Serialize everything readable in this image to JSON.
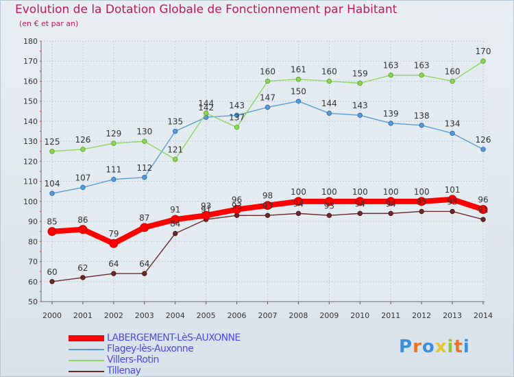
{
  "title": "Evolution de la Dotation Globale de Fonctionnement par Habitant",
  "subtitle": "(en € et par an)",
  "logo": "Proxiti",
  "chart_data": {
    "type": "line",
    "x": [
      "2000",
      "2001",
      "2002",
      "2003",
      "2004",
      "2005",
      "2006",
      "2007",
      "2008",
      "2009",
      "2010",
      "2011",
      "2012",
      "2013",
      "2014"
    ],
    "yticks": [
      50,
      60,
      70,
      80,
      90,
      100,
      110,
      120,
      130,
      140,
      150,
      160,
      170,
      180
    ],
    "ylim": [
      50,
      180
    ],
    "grid": true,
    "legend_position": "bottom-left",
    "series": [
      {
        "name": "LABERGEMENT-LèS-AUXONNE",
        "color": "#ff0000",
        "values": [
          85,
          86,
          79,
          87,
          91,
          93,
          96,
          98,
          100,
          100,
          100,
          100,
          100,
          101,
          96
        ]
      },
      {
        "name": "Flagey-lès-Auxonne",
        "color": "#5b9bd5",
        "values": [
          104,
          107,
          111,
          112,
          135,
          142,
          143,
          147,
          150,
          144,
          143,
          139,
          138,
          134,
          126
        ]
      },
      {
        "name": "Villers-Rotin",
        "color": "#8fd460",
        "values": [
          125,
          126,
          129,
          130,
          121,
          144,
          137,
          160,
          161,
          160,
          159,
          163,
          163,
          160,
          170
        ]
      },
      {
        "name": "Tillenay",
        "color": "#6b2a2a",
        "values": [
          60,
          62,
          64,
          64,
          84,
          91,
          93,
          93,
          94,
          93,
          94,
          94,
          95,
          95,
          91
        ]
      }
    ]
  }
}
